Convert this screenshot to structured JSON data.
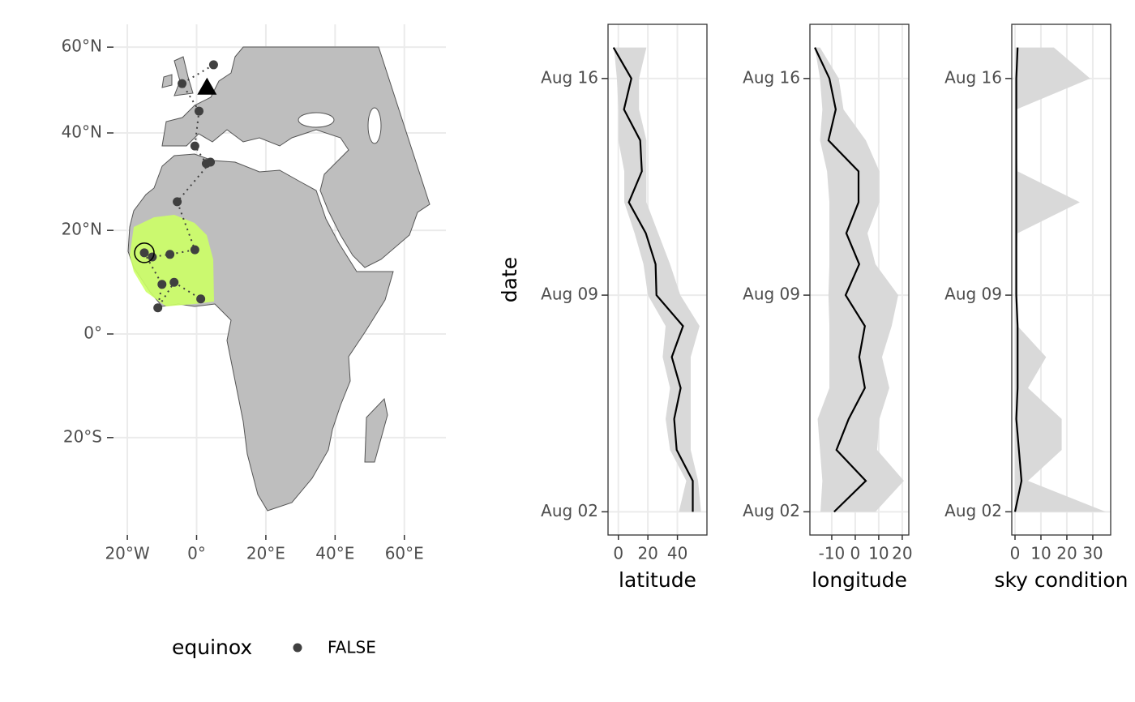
{
  "chart_data": [
    {
      "type": "map",
      "xlim": [
        -24,
        72
      ],
      "ylim": [
        -40,
        66
      ],
      "xticks": [
        {
          "value": -20,
          "label": "20°W"
        },
        {
          "value": 0,
          "label": "0°"
        },
        {
          "value": 20,
          "label": "20°E"
        },
        {
          "value": 40,
          "label": "40°E"
        },
        {
          "value": 60,
          "label": "60°E"
        }
      ],
      "yticks": [
        {
          "value": 60,
          "label": "60°N"
        },
        {
          "value": 40,
          "label": "40°N"
        },
        {
          "value": 20,
          "label": "20°N"
        },
        {
          "value": 0,
          "label": "0°"
        },
        {
          "value": -20,
          "label": "20°S"
        }
      ],
      "x": [
        4.9,
        -4.2,
        0.7,
        -0.5,
        2.8,
        4.0,
        -5.6,
        -0.5,
        -7.7,
        -12.8,
        -15.1,
        -10.0,
        -11.2,
        -6.5,
        1.2
      ],
      "y": [
        55.6,
        51.1,
        44.8,
        37.2,
        33.5,
        33.8,
        25.7,
        16.2,
        15.3,
        14.8,
        15.6,
        9.5,
        5.0,
        9.9,
        6.7
      ],
      "color": "#404040",
      "start": [
        3,
        50.4
      ],
      "highlight": [
        -15.1,
        15.6
      ],
      "grid": true,
      "legend_title": "equinox",
      "legend_labels": [
        "FALSE"
      ]
    },
    {
      "type": "line",
      "x_label": "latitude",
      "y_label": "date",
      "y": [
        "Aug 02",
        "Aug 03",
        "Aug 04",
        "Aug 05",
        "Aug 06",
        "Aug 07",
        "Aug 08",
        "Aug 09",
        "Aug 10",
        "Aug 11",
        "Aug 12",
        "Aug 13",
        "Aug 14",
        "Aug 15",
        "Aug 16",
        "Aug 17"
      ],
      "values": [
        50.4,
        50.4,
        39.5,
        37.8,
        42.2,
        36.2,
        43.8,
        25.8,
        25.2,
        18.6,
        7.1,
        15.9,
        14.8,
        3.8,
        8.8,
        -3.3
      ],
      "lower": [
        41,
        46,
        35,
        32,
        35,
        30,
        32,
        20,
        17,
        11,
        4,
        4,
        0,
        0,
        -1,
        -3
      ],
      "upper": [
        56,
        54,
        49,
        49,
        49,
        49,
        55,
        42,
        35,
        27,
        19,
        19,
        19,
        14,
        14,
        19
      ],
      "color": "#000000",
      "ribbon_color": "#d9d9d9",
      "xlim": [
        -7,
        60
      ],
      "xticks": [
        0,
        20,
        40
      ],
      "yticks": [
        "Aug 02",
        "Aug 09",
        "Aug 16"
      ],
      "grid": true
    },
    {
      "type": "line",
      "x_label": "longitude",
      "y": [
        "Aug 02",
        "Aug 03",
        "Aug 04",
        "Aug 05",
        "Aug 06",
        "Aug 07",
        "Aug 08",
        "Aug 09",
        "Aug 10",
        "Aug 11",
        "Aug 12",
        "Aug 13",
        "Aug 14",
        "Aug 15",
        "Aug 16",
        "Aug 17"
      ],
      "values": [
        -9,
        4.5,
        -8,
        -2.8,
        4.1,
        1.7,
        4.1,
        -4.1,
        1.7,
        -3.8,
        1.4,
        1.4,
        -11.4,
        -8.3,
        -11,
        -17.2
      ],
      "lower": [
        -14.8,
        -14,
        -15,
        -16,
        -11,
        -11,
        -11,
        -11.4,
        -11,
        -11,
        -11,
        -12,
        -15,
        -14,
        -15,
        -17.2
      ],
      "upper": [
        8.6,
        20.7,
        9.3,
        10.3,
        14.5,
        11.4,
        15.5,
        18.3,
        8.6,
        5.2,
        10.3,
        10.3,
        4.5,
        -5,
        -7,
        -15
      ],
      "color": "#000000",
      "ribbon_color": "#d9d9d9",
      "xlim": [
        -19.3,
        22.8
      ],
      "xticks": [
        -10,
        0,
        10,
        20
      ],
      "yticks": [
        "Aug 02",
        "Aug 09",
        "Aug 16"
      ],
      "grid": true
    },
    {
      "type": "line",
      "x_label": "sky condition",
      "y": [
        "Aug 02",
        "Aug 03",
        "Aug 04",
        "Aug 05",
        "Aug 06",
        "Aug 07",
        "Aug 08",
        "Aug 09",
        "Aug 10",
        "Aug 11",
        "Aug 12",
        "Aug 13",
        "Aug 14",
        "Aug 15",
        "Aug 16",
        "Aug 17"
      ],
      "values": [
        0,
        2.5,
        1.5,
        0.5,
        1,
        1,
        1,
        0.5,
        0.5,
        0.5,
        0.5,
        0.5,
        0.5,
        0.5,
        0.5,
        1
      ],
      "lower": [
        0,
        0,
        0,
        0,
        0,
        0,
        0,
        0,
        0,
        0,
        0,
        0,
        0,
        0,
        0,
        0
      ],
      "upper": [
        35,
        5,
        18,
        18,
        5,
        12,
        1,
        0.5,
        0.5,
        1,
        25,
        1,
        0.5,
        0.5,
        29,
        15
      ],
      "color": "#000000",
      "ribbon_color": "#d9d9d9",
      "xlim": [
        -1.25,
        36.9
      ],
      "xticks": [
        0,
        10,
        20,
        30
      ],
      "yticks": [
        "Aug 02",
        "Aug 09",
        "Aug 16"
      ],
      "grid": true
    }
  ]
}
